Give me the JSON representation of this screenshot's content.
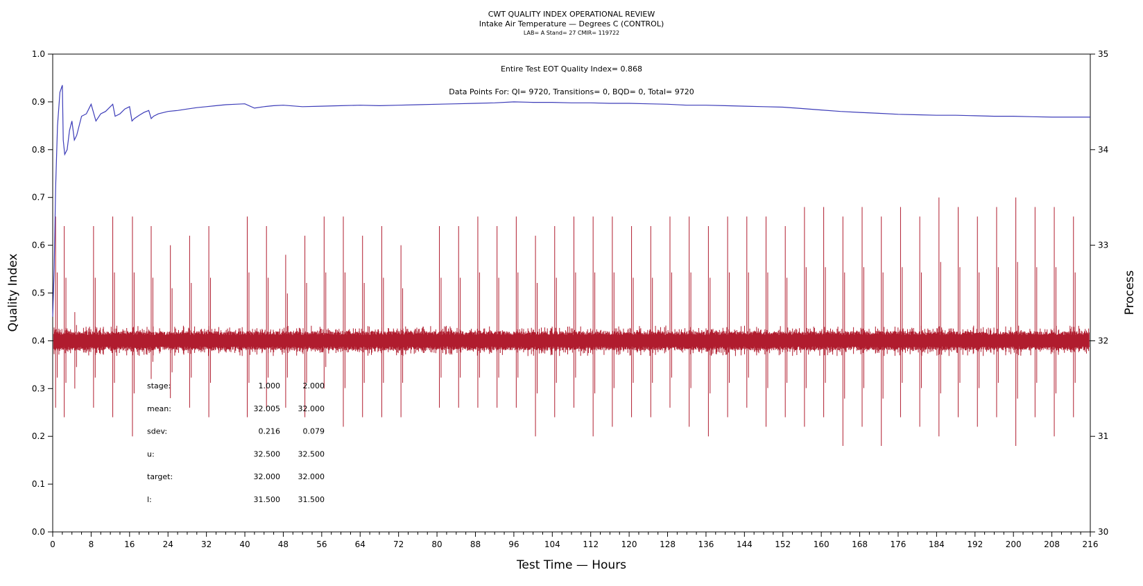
{
  "chart_data": {
    "type": "line",
    "title": "CWT QUALITY INDEX OPERATIONAL REVIEW",
    "subtitle": "Intake Air Temperature — Degrees C (CONTROL)",
    "meta": "LAB= A Stand= 27 CMIR= 119722",
    "xlabel": "Test Time — Hours",
    "ylabel": "Quality Index",
    "y2label": "Process",
    "xlim": [
      0,
      216
    ],
    "ylim": [
      0.0,
      1.0
    ],
    "y2lim": [
      30,
      35
    ],
    "xticks": [
      0,
      8,
      16,
      24,
      32,
      40,
      48,
      56,
      64,
      72,
      80,
      88,
      96,
      104,
      112,
      120,
      128,
      136,
      144,
      152,
      160,
      168,
      176,
      184,
      192,
      200,
      208,
      216
    ],
    "xtick_labels": [
      "0",
      "8",
      "16",
      "24",
      "32",
      "40",
      "48",
      "56",
      "64",
      "72",
      "80",
      "88",
      "96",
      "104",
      "112",
      "120",
      "128",
      "136",
      "144",
      "152",
      "160",
      "168",
      "176",
      "184",
      "192",
      "200",
      "208",
      "216"
    ],
    "yticks": [
      0.0,
      0.1,
      0.2,
      0.3,
      0.4,
      0.5,
      0.6,
      0.7,
      0.8,
      0.9,
      1.0
    ],
    "ytick_labels": [
      "0.0",
      "0.1",
      "0.2",
      "0.3",
      "0.4",
      "0.5",
      "0.6",
      "0.7",
      "0.8",
      "0.9",
      "1.0"
    ],
    "y2ticks": [
      30,
      31,
      32,
      33,
      34,
      35
    ],
    "y2tick_labels": [
      "30",
      "31",
      "32",
      "33",
      "34",
      "35"
    ],
    "annotations": {
      "eot": "Entire Test EOT Quality Index=   0.868",
      "points": "Data Points For: QI=  9720, Transitions=     0, BQD=     0, Total=  9720"
    },
    "stats_table": {
      "rows": [
        {
          "label": "stage:",
          "v1": "1.000",
          "v2": "2.000"
        },
        {
          "label": "mean:",
          "v1": "32.005",
          "v2": "32.000"
        },
        {
          "label": "sdev:",
          "v1": "0.216",
          "v2": "0.079"
        },
        {
          "label": "u:",
          "v1": "32.500",
          "v2": "32.500"
        },
        {
          "label": "target:",
          "v1": "32.000",
          "v2": "32.000"
        },
        {
          "label": "l:",
          "v1": "31.500",
          "v2": "31.500"
        }
      ]
    },
    "series": [
      {
        "axis": "left",
        "color": "#3b3bb8",
        "x": [
          0.0,
          0.3,
          0.6,
          1.0,
          1.5,
          2.0,
          2.2,
          2.5,
          3.0,
          3.5,
          4.0,
          4.5,
          5.0,
          6.0,
          7.0,
          8.0,
          9.0,
          10.0,
          11.0,
          12.0,
          12.5,
          13.0,
          14.0,
          15.0,
          16.0,
          16.5,
          17.0,
          18.0,
          19.0,
          20.0,
          20.5,
          21.0,
          22.0,
          24.0,
          26.0,
          28.0,
          30.0,
          32.0,
          34.0,
          36.0,
          38.0,
          40.0,
          42.0,
          44.0,
          46.0,
          48.0,
          52.0,
          56.0,
          60.0,
          64.0,
          68.0,
          72.0,
          76.0,
          80.0,
          84.0,
          88.0,
          92.0,
          96.0,
          100.0,
          104.0,
          108.0,
          112.0,
          116.0,
          120.0,
          124.0,
          128.0,
          132.0,
          136.0,
          140.0,
          144.0,
          148.0,
          152.0,
          156.0,
          160.0,
          164.0,
          168.0,
          172.0,
          176.0,
          180.0,
          184.0,
          188.0,
          192.0,
          196.0,
          200.0,
          204.0,
          208.0,
          212.0,
          216.0
        ],
        "y": [
          0.45,
          0.55,
          0.72,
          0.85,
          0.92,
          0.935,
          0.82,
          0.79,
          0.8,
          0.84,
          0.86,
          0.82,
          0.83,
          0.87,
          0.875,
          0.895,
          0.86,
          0.875,
          0.88,
          0.89,
          0.895,
          0.87,
          0.875,
          0.885,
          0.89,
          0.86,
          0.865,
          0.872,
          0.878,
          0.882,
          0.865,
          0.87,
          0.875,
          0.88,
          0.882,
          0.885,
          0.888,
          0.89,
          0.892,
          0.894,
          0.895,
          0.896,
          0.887,
          0.89,
          0.892,
          0.893,
          0.89,
          0.891,
          0.892,
          0.893,
          0.892,
          0.893,
          0.894,
          0.895,
          0.896,
          0.897,
          0.898,
          0.9,
          0.899,
          0.899,
          0.898,
          0.898,
          0.897,
          0.897,
          0.896,
          0.895,
          0.893,
          0.893,
          0.892,
          0.891,
          0.89,
          0.889,
          0.886,
          0.883,
          0.88,
          0.878,
          0.876,
          0.874,
          0.873,
          0.872,
          0.872,
          0.871,
          0.87,
          0.87,
          0.869,
          0.868,
          0.868,
          0.868
        ]
      },
      {
        "axis": "right",
        "color": "#b01c2e",
        "base": 32.0,
        "band_half": 0.1,
        "spikes": [
          {
            "x": 0.6,
            "hi": 33.3,
            "lo": 31.3
          },
          {
            "x": 2.4,
            "hi": 33.2,
            "lo": 31.2
          },
          {
            "x": 4.6,
            "hi": 32.3,
            "lo": 31.5
          },
          {
            "x": 8.5,
            "hi": 33.2,
            "lo": 31.3
          },
          {
            "x": 12.5,
            "hi": 33.3,
            "lo": 31.2
          },
          {
            "x": 16.6,
            "hi": 33.3,
            "lo": 31.0
          },
          {
            "x": 20.5,
            "hi": 33.2,
            "lo": 31.6
          },
          {
            "x": 24.5,
            "hi": 33.0,
            "lo": 31.4
          },
          {
            "x": 28.5,
            "hi": 33.1,
            "lo": 31.3
          },
          {
            "x": 32.5,
            "hi": 33.2,
            "lo": 31.2
          },
          {
            "x": 40.5,
            "hi": 33.3,
            "lo": 31.2
          },
          {
            "x": 44.5,
            "hi": 33.2,
            "lo": 31.3
          },
          {
            "x": 48.5,
            "hi": 32.9,
            "lo": 31.3
          },
          {
            "x": 52.5,
            "hi": 33.1,
            "lo": 31.2
          },
          {
            "x": 56.5,
            "hi": 33.3,
            "lo": 31.5
          },
          {
            "x": 60.5,
            "hi": 33.3,
            "lo": 31.1
          },
          {
            "x": 64.5,
            "hi": 33.1,
            "lo": 31.2
          },
          {
            "x": 68.5,
            "hi": 33.2,
            "lo": 31.2
          },
          {
            "x": 72.5,
            "hi": 33.0,
            "lo": 31.2
          },
          {
            "x": 80.5,
            "hi": 33.2,
            "lo": 31.3
          },
          {
            "x": 84.5,
            "hi": 33.2,
            "lo": 31.3
          },
          {
            "x": 88.5,
            "hi": 33.3,
            "lo": 31.3
          },
          {
            "x": 92.5,
            "hi": 33.2,
            "lo": 31.3
          },
          {
            "x": 96.5,
            "hi": 33.3,
            "lo": 31.3
          },
          {
            "x": 100.5,
            "hi": 33.1,
            "lo": 31.0
          },
          {
            "x": 104.5,
            "hi": 33.2,
            "lo": 31.2
          },
          {
            "x": 108.5,
            "hi": 33.3,
            "lo": 31.3
          },
          {
            "x": 112.5,
            "hi": 33.3,
            "lo": 31.0
          },
          {
            "x": 116.5,
            "hi": 33.3,
            "lo": 31.1
          },
          {
            "x": 120.5,
            "hi": 33.2,
            "lo": 31.2
          },
          {
            "x": 124.5,
            "hi": 33.2,
            "lo": 31.2
          },
          {
            "x": 128.5,
            "hi": 33.3,
            "lo": 31.3
          },
          {
            "x": 132.5,
            "hi": 33.3,
            "lo": 31.1
          },
          {
            "x": 136.5,
            "hi": 33.2,
            "lo": 31.0
          },
          {
            "x": 140.5,
            "hi": 33.3,
            "lo": 31.2
          },
          {
            "x": 144.5,
            "hi": 33.3,
            "lo": 31.3
          },
          {
            "x": 148.5,
            "hi": 33.3,
            "lo": 31.1
          },
          {
            "x": 152.5,
            "hi": 33.2,
            "lo": 31.2
          },
          {
            "x": 156.5,
            "hi": 33.4,
            "lo": 31.1
          },
          {
            "x": 160.5,
            "hi": 33.4,
            "lo": 31.2
          },
          {
            "x": 164.5,
            "hi": 33.3,
            "lo": 30.9
          },
          {
            "x": 168.5,
            "hi": 33.4,
            "lo": 31.1
          },
          {
            "x": 172.5,
            "hi": 33.3,
            "lo": 30.9
          },
          {
            "x": 176.5,
            "hi": 33.4,
            "lo": 31.2
          },
          {
            "x": 180.5,
            "hi": 33.3,
            "lo": 31.1
          },
          {
            "x": 184.5,
            "hi": 33.5,
            "lo": 31.0
          },
          {
            "x": 188.5,
            "hi": 33.4,
            "lo": 31.2
          },
          {
            "x": 192.5,
            "hi": 33.3,
            "lo": 31.1
          },
          {
            "x": 196.5,
            "hi": 33.4,
            "lo": 31.2
          },
          {
            "x": 200.5,
            "hi": 33.5,
            "lo": 30.9
          },
          {
            "x": 204.5,
            "hi": 33.4,
            "lo": 31.2
          },
          {
            "x": 208.5,
            "hi": 33.4,
            "lo": 31.0
          },
          {
            "x": 212.5,
            "hi": 33.3,
            "lo": 31.2
          }
        ]
      }
    ]
  }
}
